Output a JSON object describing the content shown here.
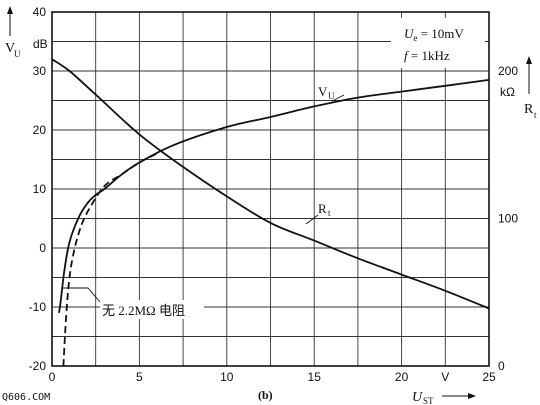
{
  "chart_data": {
    "type": "line",
    "x_ticks": [
      "0",
      "5",
      "10",
      "15",
      "20",
      "V",
      "25"
    ],
    "y_left_ticks": [
      "40",
      "30",
      "20",
      "10",
      "0",
      "-10",
      "-20"
    ],
    "y_left_unit": "dB",
    "y_right_ticks": [
      "200",
      "100",
      "0"
    ],
    "y_right_unit": "kΩ",
    "ylabel_left": "VU",
    "ylabel_left_main": "V",
    "ylabel_left_sub": "U",
    "ylabel_right": "Rt",
    "ylabel_right_main": "R",
    "ylabel_right_sub": "t",
    "xlabel": "UST",
    "xlabel_main": "U",
    "xlabel_sub": "ST",
    "xlim": [
      0,
      25
    ],
    "ylim_left": [
      -20,
      40
    ],
    "ylim_right": [
      0,
      240
    ],
    "conditions": [
      "Ue = 10mV",
      "f = 1kHz"
    ],
    "conditions_parts": [
      {
        "main": "U",
        "sub": "e",
        "rest": " = 10mV"
      },
      {
        "main": "f",
        "sub": "",
        "rest": " = 1kHz"
      }
    ],
    "series": [
      {
        "name": "VU",
        "label_main": "V",
        "label_sub": "U",
        "axis": "left",
        "style": "solid",
        "x": [
          0.4,
          0.5,
          0.7,
          1.0,
          1.5,
          2.0,
          2.5,
          3.0,
          4.0,
          5.0,
          7.0,
          10.0,
          12.5,
          15.0,
          17.5,
          20.0,
          22.5,
          25.0
        ],
        "y": [
          -11,
          -9,
          -4,
          1,
          5,
          7.5,
          9,
          10,
          12.5,
          14.5,
          17.5,
          20.5,
          22.2,
          24,
          25.5,
          26.5,
          27.5,
          28.5
        ]
      },
      {
        "name": "VU (without 2.2MΩ resistor)",
        "axis": "left",
        "style": "dashed",
        "x": [
          0.65,
          0.8,
          1.0,
          1.3,
          1.7,
          2.2,
          3.0,
          4.0,
          5.0,
          6.0
        ],
        "y": [
          -20,
          -12,
          -5,
          0,
          4,
          7,
          10.5,
          12.5,
          14.5,
          16
        ]
      },
      {
        "name": "Rt",
        "label_main": "R",
        "label_sub": "t",
        "axis": "right",
        "style": "solid",
        "x": [
          0,
          1,
          2.5,
          5,
          7.5,
          10,
          12.5,
          15,
          17.5,
          20,
          22.5,
          25
        ],
        "y": [
          208,
          200,
          184,
          157,
          135,
          115,
          97,
          85,
          73,
          62,
          51,
          39
        ]
      }
    ],
    "annotations": {
      "no_resistor": "无 2.2MΩ 电阻",
      "figure_label": "(b)",
      "watermark": "Q606.COM"
    },
    "grid": true
  }
}
